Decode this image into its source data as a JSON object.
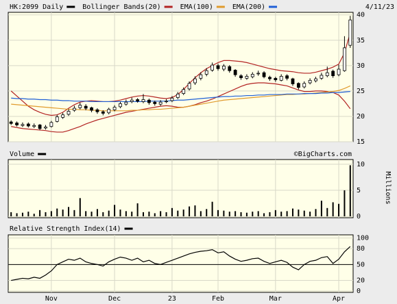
{
  "chart_data": [
    {
      "type": "candlestick",
      "title": "HK:2099 Daily",
      "date": "4/11/23",
      "color": "#000000",
      "open": [
        18.9,
        18.7,
        18.2,
        18.5,
        18.0,
        18.3,
        17.7,
        18.0,
        19.0,
        19.8,
        20.4,
        21.2,
        21.7,
        22.0,
        21.7,
        21.3,
        20.9,
        20.7,
        21.3,
        21.9,
        22.4,
        22.9,
        23.3,
        22.9,
        23.2,
        22.8,
        22.4,
        22.9,
        23.1,
        23.7,
        24.5,
        25.4,
        26.6,
        27.5,
        28.3,
        29.1,
        30.0,
        29.3,
        29.8,
        29.1,
        28.0,
        27.5,
        27.8,
        28.4,
        28.6,
        27.7,
        27.5,
        27.1,
        28.0,
        27.4,
        26.5,
        25.8,
        26.6,
        27.0,
        27.5,
        28.0,
        28.9,
        28.2,
        29.0,
        34.0
      ],
      "high": [
        19.2,
        19.0,
        18.8,
        18.8,
        18.6,
        18.5,
        18.3,
        19.1,
        20.3,
        20.7,
        21.4,
        22.1,
        22.7,
        22.4,
        21.9,
        21.6,
        21.2,
        21.7,
        22.2,
        22.9,
        23.3,
        23.7,
        23.6,
        24.4,
        23.5,
        23.1,
        23.2,
        23.4,
        24.0,
        24.8,
        25.7,
        26.9,
        27.9,
        28.7,
        29.5,
        30.6,
        30.4,
        30.3,
        30.1,
        29.3,
        28.3,
        28.3,
        28.7,
        29.0,
        28.9,
        28.0,
        27.8,
        28.3,
        28.3,
        27.6,
        26.7,
        26.9,
        27.5,
        27.8,
        28.6,
        29.8,
        29.2,
        30.2,
        35.8,
        39.8
      ],
      "low": [
        18.3,
        18.0,
        17.9,
        17.8,
        17.7,
        17.3,
        17.4,
        17.8,
        18.8,
        19.5,
        20.1,
        20.9,
        21.4,
        21.2,
        20.8,
        20.5,
        20.2,
        20.4,
        21.0,
        21.6,
        22.1,
        22.6,
        22.7,
        22.6,
        22.3,
        22.1,
        22.1,
        22.6,
        22.8,
        23.4,
        24.2,
        25.1,
        26.2,
        27.1,
        27.9,
        28.8,
        29.0,
        28.9,
        28.6,
        27.8,
        27.2,
        27.2,
        27.5,
        28.0,
        27.5,
        27.0,
        26.8,
        26.9,
        27.1,
        26.0,
        25.3,
        25.5,
        26.3,
        26.7,
        27.2,
        27.7,
        27.6,
        27.9,
        28.8,
        33.5
      ],
      "close": [
        18.6,
        18.3,
        18.4,
        18.1,
        18.2,
        17.6,
        17.9,
        18.8,
        19.9,
        20.3,
        21.0,
        21.6,
        22.2,
        21.6,
        21.2,
        20.9,
        20.6,
        21.4,
        21.8,
        22.5,
        22.8,
        23.2,
        23.0,
        23.3,
        22.7,
        22.5,
        22.8,
        23.0,
        23.6,
        24.4,
        25.3,
        26.5,
        27.4,
        28.2,
        29.0,
        30.1,
        29.4,
        29.9,
        29.0,
        28.2,
        27.6,
        27.9,
        28.3,
        28.5,
        27.8,
        27.4,
        27.2,
        27.9,
        27.5,
        26.4,
        25.7,
        26.5,
        27.1,
        27.4,
        28.1,
        28.6,
        28.0,
        29.3,
        33.5,
        39.0
      ],
      "overlays": [
        {
          "name": "Bollinger Bands(20)",
          "color": "#b22222",
          "upper": [
            25.0,
            24.0,
            23.0,
            22.0,
            21.3,
            20.8,
            20.4,
            20.2,
            20.3,
            20.8,
            21.6,
            22.3,
            22.8,
            23.0,
            23.1,
            23.0,
            22.9,
            22.9,
            23.0,
            23.2,
            23.5,
            23.8,
            24.0,
            24.1,
            24.0,
            23.8,
            23.6,
            23.5,
            23.7,
            24.3,
            25.3,
            26.5,
            27.6,
            28.6,
            29.4,
            30.0,
            30.6,
            31.0,
            31.0,
            30.9,
            30.8,
            30.6,
            30.3,
            30.0,
            29.7,
            29.4,
            29.2,
            29.0,
            28.9,
            28.8,
            28.6,
            28.5,
            28.5,
            28.7,
            29.0,
            29.3,
            29.7,
            30.3,
            32.5,
            36.5
          ],
          "lower": [
            18.0,
            17.8,
            17.6,
            17.5,
            17.4,
            17.3,
            17.2,
            17.0,
            16.9,
            16.9,
            17.2,
            17.6,
            18.0,
            18.5,
            18.9,
            19.3,
            19.6,
            19.9,
            20.2,
            20.5,
            20.8,
            21.0,
            21.2,
            21.4,
            21.6,
            21.8,
            22.0,
            22.1,
            22.0,
            21.8,
            21.8,
            22.0,
            22.3,
            22.7,
            23.0,
            23.4,
            23.9,
            24.4,
            24.9,
            25.4,
            25.9,
            26.3,
            26.5,
            26.6,
            26.6,
            26.5,
            26.4,
            26.2,
            26.0,
            25.6,
            25.2,
            24.9,
            24.9,
            25.0,
            25.0,
            24.9,
            24.7,
            24.2,
            23.0,
            21.5
          ]
        },
        {
          "name": "EMA(100)",
          "color": "#e09a2c",
          "values": [
            22.4,
            22.3,
            22.2,
            22.1,
            22.0,
            21.9,
            21.8,
            21.7,
            21.6,
            21.5,
            21.4,
            21.4,
            21.3,
            21.3,
            21.2,
            21.2,
            21.1,
            21.1,
            21.1,
            21.1,
            21.1,
            21.2,
            21.2,
            21.3,
            21.3,
            21.4,
            21.4,
            21.5,
            21.6,
            21.7,
            21.8,
            22.0,
            22.2,
            22.4,
            22.6,
            22.8,
            23.0,
            23.2,
            23.3,
            23.4,
            23.5,
            23.6,
            23.7,
            23.8,
            23.9,
            24.0,
            24.1,
            24.2,
            24.3,
            24.3,
            24.4,
            24.4,
            24.5,
            24.6,
            24.7,
            24.8,
            24.9,
            25.1,
            25.5,
            26.0
          ]
        },
        {
          "name": "EMA(200)",
          "color": "#1f5fd6",
          "values": [
            23.6,
            23.5,
            23.5,
            23.4,
            23.4,
            23.3,
            23.3,
            23.2,
            23.2,
            23.1,
            23.1,
            23.0,
            23.0,
            23.0,
            22.9,
            22.9,
            22.9,
            22.9,
            22.9,
            22.9,
            22.9,
            22.9,
            22.9,
            22.9,
            23.0,
            23.0,
            23.0,
            23.0,
            23.1,
            23.2,
            23.2,
            23.3,
            23.4,
            23.5,
            23.6,
            23.7,
            23.8,
            23.9,
            23.9,
            24.0,
            24.0,
            24.1,
            24.1,
            24.2,
            24.2,
            24.3,
            24.3,
            24.3,
            24.4,
            24.4,
            24.4,
            24.5,
            24.5,
            24.5,
            24.6,
            24.6,
            24.7,
            24.7,
            24.8,
            24.9
          ]
        }
      ],
      "xlim": [
        -0.5,
        59.5
      ],
      "ylim": [
        15,
        40.5
      ],
      "yticks": [
        15,
        20,
        25,
        30,
        35,
        40
      ],
      "grid": true
    },
    {
      "type": "bar",
      "title": "Volume",
      "source": "©BigCharts.com",
      "y_label": "Millions",
      "color": "#000000",
      "values": [
        0.8,
        0.6,
        0.7,
        0.9,
        0.5,
        1.2,
        0.8,
        1.0,
        1.5,
        1.3,
        1.8,
        1.2,
        3.5,
        1.0,
        0.9,
        1.4,
        0.8,
        1.1,
        2.2,
        1.3,
        1.0,
        0.9,
        2.5,
        0.8,
        0.9,
        0.6,
        1.0,
        0.8,
        1.6,
        1.1,
        1.3,
        1.9,
        2.1,
        1.0,
        1.4,
        2.8,
        1.2,
        1.1,
        0.9,
        1.0,
        0.8,
        0.7,
        0.9,
        1.0,
        0.6,
        0.8,
        1.2,
        0.9,
        1.0,
        1.5,
        1.3,
        1.1,
        0.9,
        1.4,
        3.0,
        1.6,
        2.7,
        2.4,
        5.0,
        9.8
      ],
      "xlim": [
        -0.5,
        59.5
      ],
      "ylim": [
        0,
        10.9
      ],
      "yticks": [
        0,
        5,
        10
      ],
      "grid": true
    },
    {
      "type": "line",
      "title": "Relative Strength Index(14)",
      "color": "#000000",
      "values": [
        20,
        22,
        24,
        23,
        26,
        24,
        30,
        38,
        50,
        55,
        60,
        58,
        62,
        55,
        52,
        50,
        47,
        55,
        60,
        64,
        62,
        58,
        62,
        55,
        58,
        52,
        50,
        54,
        58,
        62,
        66,
        70,
        73,
        75,
        76,
        78,
        72,
        74,
        66,
        60,
        56,
        58,
        61,
        62,
        56,
        52,
        55,
        58,
        54,
        45,
        40,
        50,
        56,
        58,
        63,
        65,
        52,
        60,
        74,
        84
      ],
      "reference": 50,
      "xlim": [
        -0.5,
        59.5
      ],
      "ylim": [
        0,
        106
      ],
      "yticks": [
        0,
        20,
        50,
        80,
        100
      ],
      "xticks": [
        {
          "value": 7,
          "label": "Nov"
        },
        {
          "value": 18,
          "label": "Dec"
        },
        {
          "value": 28,
          "label": "23"
        },
        {
          "value": 36,
          "label": "Feb"
        },
        {
          "value": 46,
          "label": "Mar"
        },
        {
          "value": 57,
          "label": "Apr"
        }
      ],
      "grid": true
    }
  ]
}
